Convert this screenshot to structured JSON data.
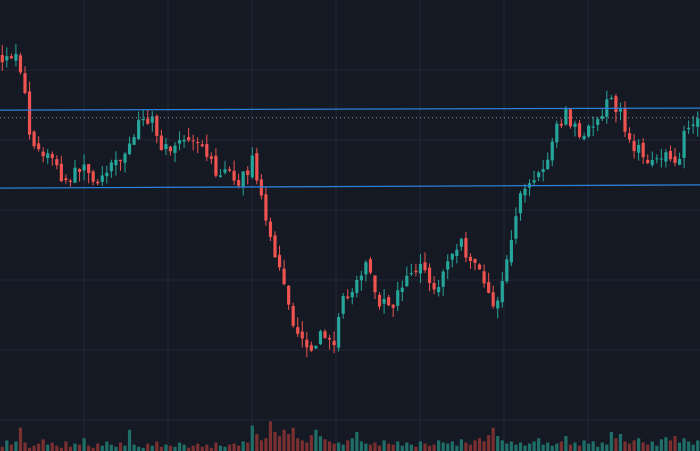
{
  "theme": {
    "background": "#151924",
    "grid": "#232837",
    "bullish": "#26a69a",
    "bearish": "#ef5350",
    "bullish_volume": "#1f6f68",
    "bearish_volume": "#7a2f30",
    "trendline": "#2f7fd6",
    "current_price_line": "#8a8f9c"
  },
  "chart_data": {
    "type": "candlestick",
    "title": "",
    "xlabel": "",
    "ylabel": "",
    "grid": true,
    "legend": "none",
    "price_range": [
      0,
      100
    ],
    "volume_range": [
      0,
      100
    ],
    "trendlines": [
      {
        "kind": "horizontal-ray",
        "y_start": 74.6,
        "y_end": 75.1
      },
      {
        "kind": "horizontal-ray",
        "y_start": 55.2,
        "y_end": 56.0
      }
    ],
    "current_price_line": 72.7,
    "close_path": [
      [
        0,
        88
      ],
      [
        3,
        89
      ],
      [
        5,
        82
      ],
      [
        6,
        68
      ],
      [
        9,
        63
      ],
      [
        10,
        65
      ],
      [
        14,
        57
      ],
      [
        16,
        58
      ],
      [
        18,
        61
      ],
      [
        21,
        57
      ],
      [
        24,
        59
      ],
      [
        28,
        64
      ],
      [
        31,
        71
      ],
      [
        34,
        73
      ],
      [
        36,
        66
      ],
      [
        38,
        65
      ],
      [
        40,
        67
      ],
      [
        43,
        66
      ],
      [
        46,
        64
      ],
      [
        48,
        60
      ],
      [
        50,
        59
      ],
      [
        52,
        58
      ],
      [
        54,
        57
      ],
      [
        56,
        60
      ],
      [
        57,
        64
      ],
      [
        58,
        57
      ],
      [
        60,
        45
      ],
      [
        62,
        39
      ],
      [
        64,
        32
      ],
      [
        66,
        22
      ],
      [
        68,
        18
      ],
      [
        70,
        16
      ],
      [
        72,
        18
      ],
      [
        74,
        20
      ],
      [
        75,
        12
      ],
      [
        77,
        26
      ],
      [
        79,
        30
      ],
      [
        81,
        31
      ],
      [
        83,
        38
      ],
      [
        85,
        28
      ],
      [
        87,
        26
      ],
      [
        89,
        27
      ],
      [
        91,
        31
      ],
      [
        93,
        34
      ],
      [
        95,
        36
      ],
      [
        97,
        33
      ],
      [
        99,
        30
      ],
      [
        101,
        37
      ],
      [
        103,
        40
      ],
      [
        104,
        42
      ],
      [
        106,
        38
      ],
      [
        108,
        36
      ],
      [
        110,
        30
      ],
      [
        111,
        28
      ],
      [
        112,
        26
      ],
      [
        114,
        34
      ],
      [
        116,
        44
      ],
      [
        118,
        55
      ],
      [
        120,
        57
      ],
      [
        122,
        59
      ],
      [
        124,
        62
      ],
      [
        126,
        70
      ],
      [
        128,
        74
      ],
      [
        130,
        70
      ],
      [
        132,
        69
      ],
      [
        134,
        70
      ],
      [
        136,
        73
      ],
      [
        138,
        77
      ],
      [
        140,
        75
      ],
      [
        142,
        68
      ],
      [
        144,
        65
      ],
      [
        146,
        63
      ],
      [
        148,
        63
      ],
      [
        150,
        64
      ],
      [
        152,
        62
      ],
      [
        154,
        64
      ],
      [
        155,
        70
      ],
      [
        157,
        72
      ],
      [
        158,
        72
      ]
    ],
    "volume_bars": [
      4,
      10,
      6,
      9,
      22,
      8,
      3,
      5,
      7,
      11,
      6,
      8,
      5,
      3,
      9,
      4,
      7,
      6,
      12,
      5,
      3,
      7,
      5,
      9,
      6,
      4,
      8,
      5,
      20,
      6,
      4,
      3,
      7,
      5,
      9,
      4,
      6,
      5,
      4,
      8,
      6,
      3,
      5,
      7,
      4,
      6,
      3,
      8,
      5,
      4,
      6,
      7,
      5,
      9,
      8,
      24,
      16,
      10,
      12,
      28,
      18,
      14,
      20,
      16,
      22,
      12,
      10,
      8,
      15,
      20,
      14,
      11,
      9,
      7,
      8,
      6,
      10,
      12,
      18,
      9,
      7,
      6,
      8,
      5,
      10,
      7,
      6,
      9,
      5,
      8,
      6,
      4,
      9,
      7,
      5,
      6,
      10,
      8,
      7,
      9,
      5,
      11,
      8,
      6,
      10,
      12,
      9,
      15,
      22,
      14,
      10,
      7,
      9,
      6,
      8,
      5,
      7,
      9,
      12,
      6,
      8,
      5,
      7,
      9,
      14,
      6,
      8,
      5,
      10,
      7,
      9,
      4,
      8,
      6,
      18,
      12,
      16,
      9,
      7,
      10,
      12,
      8,
      6,
      9,
      5,
      11,
      13,
      10,
      14,
      8,
      12,
      9,
      6,
      10
    ]
  }
}
